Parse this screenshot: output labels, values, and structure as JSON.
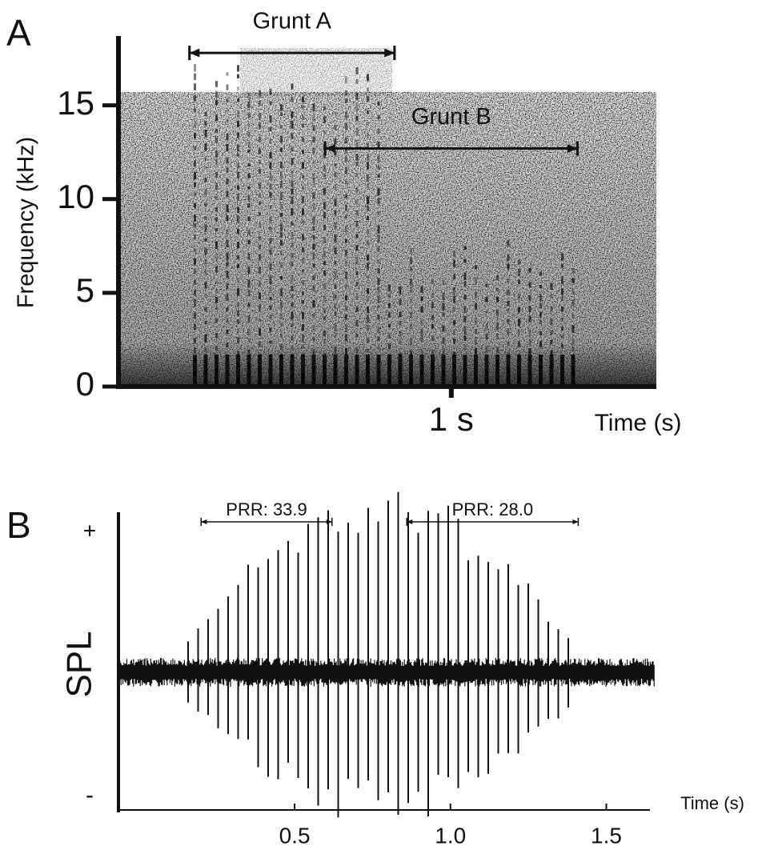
{
  "chart_data": [
    {
      "type": "spectrogram",
      "panel_label": "A",
      "ylabel": "Frequency (kHz)",
      "xlabel": "Time (s)",
      "ylim": [
        0,
        18.7
      ],
      "yticks": [
        0,
        5,
        10,
        15
      ],
      "xlim": [
        -0.05,
        1.65
      ],
      "xticks": [
        {
          "value": 1,
          "label": "1 s"
        }
      ],
      "annotations": [
        {
          "label": "Grunt A",
          "x": [
            0.17,
            0.82
          ],
          "y": 17.8
        },
        {
          "label": "Grunt B",
          "x": [
            0.6,
            1.4
          ],
          "y": 12.7
        }
      ]
    },
    {
      "type": "waveform",
      "panel_label": "B",
      "ylabel": "SPL",
      "y_high_label": "+",
      "y_low_label": "-",
      "xlabel": "Time (s)",
      "xlim": [
        -0.06,
        1.64
      ],
      "xticks": [
        {
          "value": 0.5,
          "label": "0.5"
        },
        {
          "value": 1.0,
          "label": "1.0"
        },
        {
          "value": 1.5,
          "label": "1.5"
        }
      ],
      "annotations": [
        {
          "label": "PRR: 33.9",
          "x": [
            0.2,
            0.62
          ]
        },
        {
          "label": "PRR: 28.0",
          "x": [
            0.86,
            1.41
          ]
        }
      ]
    }
  ]
}
